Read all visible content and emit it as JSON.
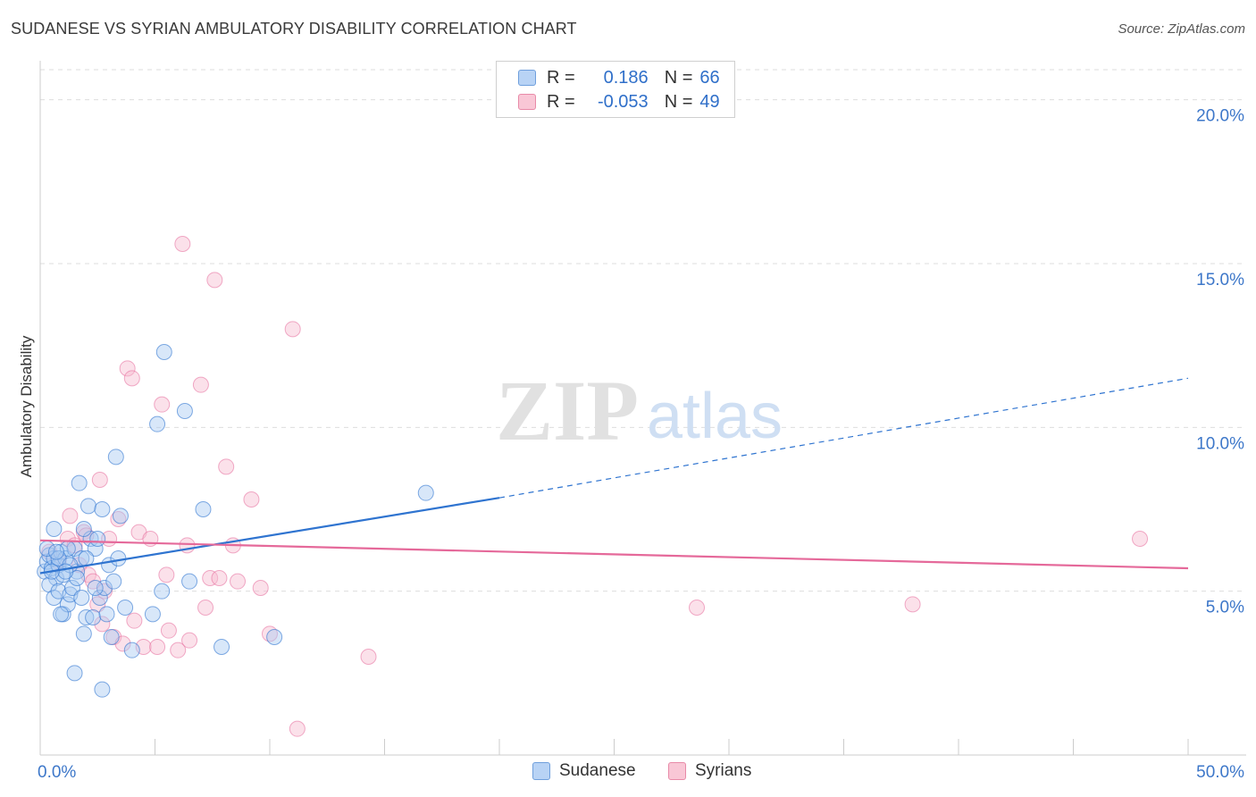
{
  "title": "SUDANESE VS SYRIAN AMBULATORY DISABILITY CORRELATION CHART",
  "source": "Source: ZipAtlas.com",
  "watermark": {
    "zip": "ZIP",
    "atlas": "atlas"
  },
  "legend": {
    "rows": [
      {
        "r_label": "R =",
        "r_value": "0.186",
        "n_label": "N =",
        "n_value": "66"
      },
      {
        "r_label": "R =",
        "r_value": "-0.053",
        "n_label": "N =",
        "n_value": "49"
      }
    ]
  },
  "bottom_legend": {
    "series1": "Sudanese",
    "series2": "Syrians"
  },
  "chart_data": {
    "type": "scatter",
    "title": "SUDANESE VS SYRIAN AMBULATORY DISABILITY CORRELATION CHART",
    "xlabel": "",
    "ylabel": "Ambulatory Disability",
    "xlim": [
      0,
      50
    ],
    "ylim": [
      0,
      21
    ],
    "x_tick_labels": [
      "0.0%",
      "50.0%"
    ],
    "y_ticks": [
      5,
      10,
      15,
      20
    ],
    "y_tick_labels": [
      "5.0%",
      "10.0%",
      "15.0%",
      "20.0%"
    ],
    "grid": true,
    "colors": {
      "sudanese": "#2f74d0",
      "syrians": "#e5699a",
      "sudanese_fill": "#a9c9f2",
      "syrians_fill": "#f7bcd0"
    },
    "series": [
      {
        "name": "Sudanese",
        "r": 0.186,
        "n": 66,
        "trend": {
          "x0": 0,
          "y0": 5.55,
          "x1": 20,
          "y1": 7.85,
          "dashed_to_x": 50,
          "dashed_to_y": 11.5
        },
        "points": [
          [
            0.2,
            5.6
          ],
          [
            0.3,
            5.9
          ],
          [
            0.4,
            6.1
          ],
          [
            0.5,
            5.7
          ],
          [
            0.6,
            6.0
          ],
          [
            0.7,
            5.4
          ],
          [
            0.8,
            5.8
          ],
          [
            0.9,
            6.2
          ],
          [
            1.0,
            5.5
          ],
          [
            1.1,
            6.0
          ],
          [
            0.4,
            5.2
          ],
          [
            0.6,
            4.8
          ],
          [
            0.8,
            5.0
          ],
          [
            1.0,
            4.3
          ],
          [
            1.2,
            4.6
          ],
          [
            1.3,
            4.9
          ],
          [
            1.4,
            5.1
          ],
          [
            1.5,
            6.3
          ],
          [
            1.6,
            5.6
          ],
          [
            1.8,
            6.0
          ],
          [
            0.6,
            6.9
          ],
          [
            1.7,
            8.3
          ],
          [
            1.8,
            4.8
          ],
          [
            1.9,
            3.7
          ],
          [
            2.0,
            4.2
          ],
          [
            2.1,
            7.6
          ],
          [
            2.2,
            6.6
          ],
          [
            2.3,
            4.2
          ],
          [
            2.4,
            6.3
          ],
          [
            2.5,
            6.6
          ],
          [
            2.6,
            4.8
          ],
          [
            2.7,
            7.5
          ],
          [
            2.8,
            5.1
          ],
          [
            2.9,
            4.3
          ],
          [
            3.0,
            5.8
          ],
          [
            3.1,
            3.6
          ],
          [
            3.2,
            5.3
          ],
          [
            3.3,
            9.1
          ],
          [
            3.4,
            6.0
          ],
          [
            3.5,
            7.3
          ],
          [
            3.7,
            4.5
          ],
          [
            4.0,
            3.2
          ],
          [
            4.9,
            4.3
          ],
          [
            5.1,
            10.1
          ],
          [
            5.3,
            5.0
          ],
          [
            5.4,
            12.3
          ],
          [
            6.3,
            10.5
          ],
          [
            6.5,
            5.3
          ],
          [
            7.1,
            7.5
          ],
          [
            7.9,
            3.3
          ],
          [
            10.2,
            3.6
          ],
          [
            16.8,
            8.0
          ],
          [
            1.5,
            2.5
          ],
          [
            2.7,
            2.0
          ],
          [
            0.9,
            4.3
          ],
          [
            1.9,
            6.9
          ],
          [
            1.2,
            6.3
          ],
          [
            0.3,
            6.3
          ],
          [
            0.8,
            6.0
          ],
          [
            1.3,
            5.8
          ],
          [
            2.0,
            6.0
          ],
          [
            2.4,
            5.1
          ],
          [
            1.6,
            5.4
          ],
          [
            1.1,
            5.6
          ],
          [
            0.5,
            5.6
          ],
          [
            0.7,
            6.2
          ]
        ]
      },
      {
        "name": "Syrians",
        "r": -0.053,
        "n": 49,
        "trend": {
          "x0": 0,
          "y0": 6.55,
          "x1": 50,
          "y1": 5.7
        },
        "points": [
          [
            0.4,
            6.2
          ],
          [
            0.8,
            5.9
          ],
          [
            1.2,
            6.6
          ],
          [
            1.3,
            7.3
          ],
          [
            1.5,
            6.4
          ],
          [
            1.7,
            5.8
          ],
          [
            1.9,
            6.8
          ],
          [
            2.0,
            6.7
          ],
          [
            2.1,
            5.5
          ],
          [
            2.3,
            5.3
          ],
          [
            2.5,
            4.6
          ],
          [
            2.7,
            4.0
          ],
          [
            2.8,
            5.0
          ],
          [
            3.0,
            6.6
          ],
          [
            3.2,
            3.6
          ],
          [
            3.4,
            7.2
          ],
          [
            3.6,
            3.4
          ],
          [
            3.8,
            11.8
          ],
          [
            4.0,
            11.5
          ],
          [
            4.1,
            4.1
          ],
          [
            4.3,
            6.8
          ],
          [
            4.5,
            3.3
          ],
          [
            4.8,
            6.6
          ],
          [
            5.1,
            3.3
          ],
          [
            5.3,
            10.7
          ],
          [
            5.5,
            5.5
          ],
          [
            5.6,
            3.8
          ],
          [
            6.0,
            3.2
          ],
          [
            6.2,
            15.6
          ],
          [
            6.4,
            6.4
          ],
          [
            6.5,
            3.5
          ],
          [
            7.0,
            11.3
          ],
          [
            7.2,
            4.5
          ],
          [
            7.4,
            5.4
          ],
          [
            7.6,
            14.5
          ],
          [
            7.8,
            5.4
          ],
          [
            8.1,
            8.8
          ],
          [
            8.4,
            6.4
          ],
          [
            8.6,
            5.3
          ],
          [
            9.2,
            7.8
          ],
          [
            9.6,
            5.1
          ],
          [
            10.0,
            3.7
          ],
          [
            11.0,
            13.0
          ],
          [
            11.2,
            0.8
          ],
          [
            14.3,
            3.0
          ],
          [
            28.6,
            4.5
          ],
          [
            38.0,
            4.6
          ],
          [
            47.9,
            6.6
          ],
          [
            2.6,
            8.4
          ]
        ]
      }
    ]
  }
}
